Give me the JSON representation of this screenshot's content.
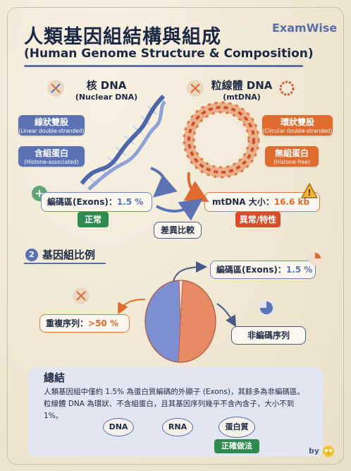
{
  "brand": "ExamWise",
  "title": {
    "zh": "人類基因組結構與組成",
    "en": "(Human Genome Structure & Composition)"
  },
  "nuclear": {
    "title": "核 DNA",
    "subtitle": "(Nuclear DNA)",
    "tag1": {
      "main": "線狀雙股",
      "sub": "(Linear double-stranded)"
    },
    "tag2": {
      "main": "含組蛋白",
      "sub": "(Histone-associated)"
    },
    "exon_label": "編碼區(Exons)：",
    "exon_value": "1.5 %",
    "status": "正常"
  },
  "mito": {
    "title": "粒線體 DNA",
    "subtitle": "(mtDNA)",
    "tag1": {
      "main": "環狀雙股",
      "sub": "(Circular double-stranded)"
    },
    "tag2": {
      "main": "無組蛋白",
      "sub": "(Histone-free)"
    },
    "size_label": "mtDNA 大小：",
    "size_value": "16.6 kb",
    "status": "異常/特性"
  },
  "compare_label": "差異比較",
  "section2": {
    "number": "2",
    "title": "基因組比例"
  },
  "pie": {
    "exon_label": "編碼區(Exons)：",
    "exon_value": "1.5 %",
    "repeat_label": "重複序列：",
    "repeat_value": ">50 %",
    "noncoding_label": "非編碼序列"
  },
  "chart_data": {
    "type": "pie",
    "categories": [
      "重複序列",
      "非編碼序列",
      "編碼區(Exons)"
    ],
    "values": [
      50,
      48.5,
      1.5
    ]
  },
  "summary": {
    "title": "總結",
    "text": "人類基因組中僅約 1.5% 為蛋白質編碼的外顯子 (Exons)，其餘多為非編碼區。粒線體 DNA 為環狀、不含組蛋白，且其基因序列幾乎不含內含子，大小不到 1%。",
    "flow": [
      "DNA",
      "RNA",
      "蛋白質"
    ],
    "badge": "正確做法"
  },
  "credit": "by",
  "colors": {
    "blue": "#5b72b5",
    "orange": "#df6b2f",
    "green": "#2e8b4f",
    "red": "#d64d2c"
  }
}
